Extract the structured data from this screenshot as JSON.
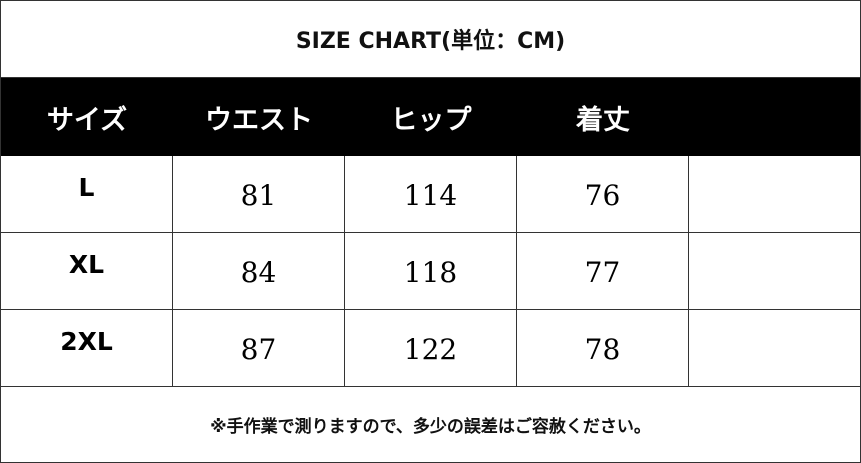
{
  "table": {
    "title": "SIZE CHART(単位：CM)",
    "header": [
      "サイズ",
      "ウエスト",
      "ヒップ",
      "着丈"
    ],
    "rows": [
      [
        "L",
        81,
        114,
        76
      ],
      [
        "XL",
        84,
        118,
        77
      ],
      [
        "2XL",
        87,
        122,
        78
      ]
    ],
    "note": "※手作業で測りますので、多少の誤差はご容赦ください。"
  }
}
